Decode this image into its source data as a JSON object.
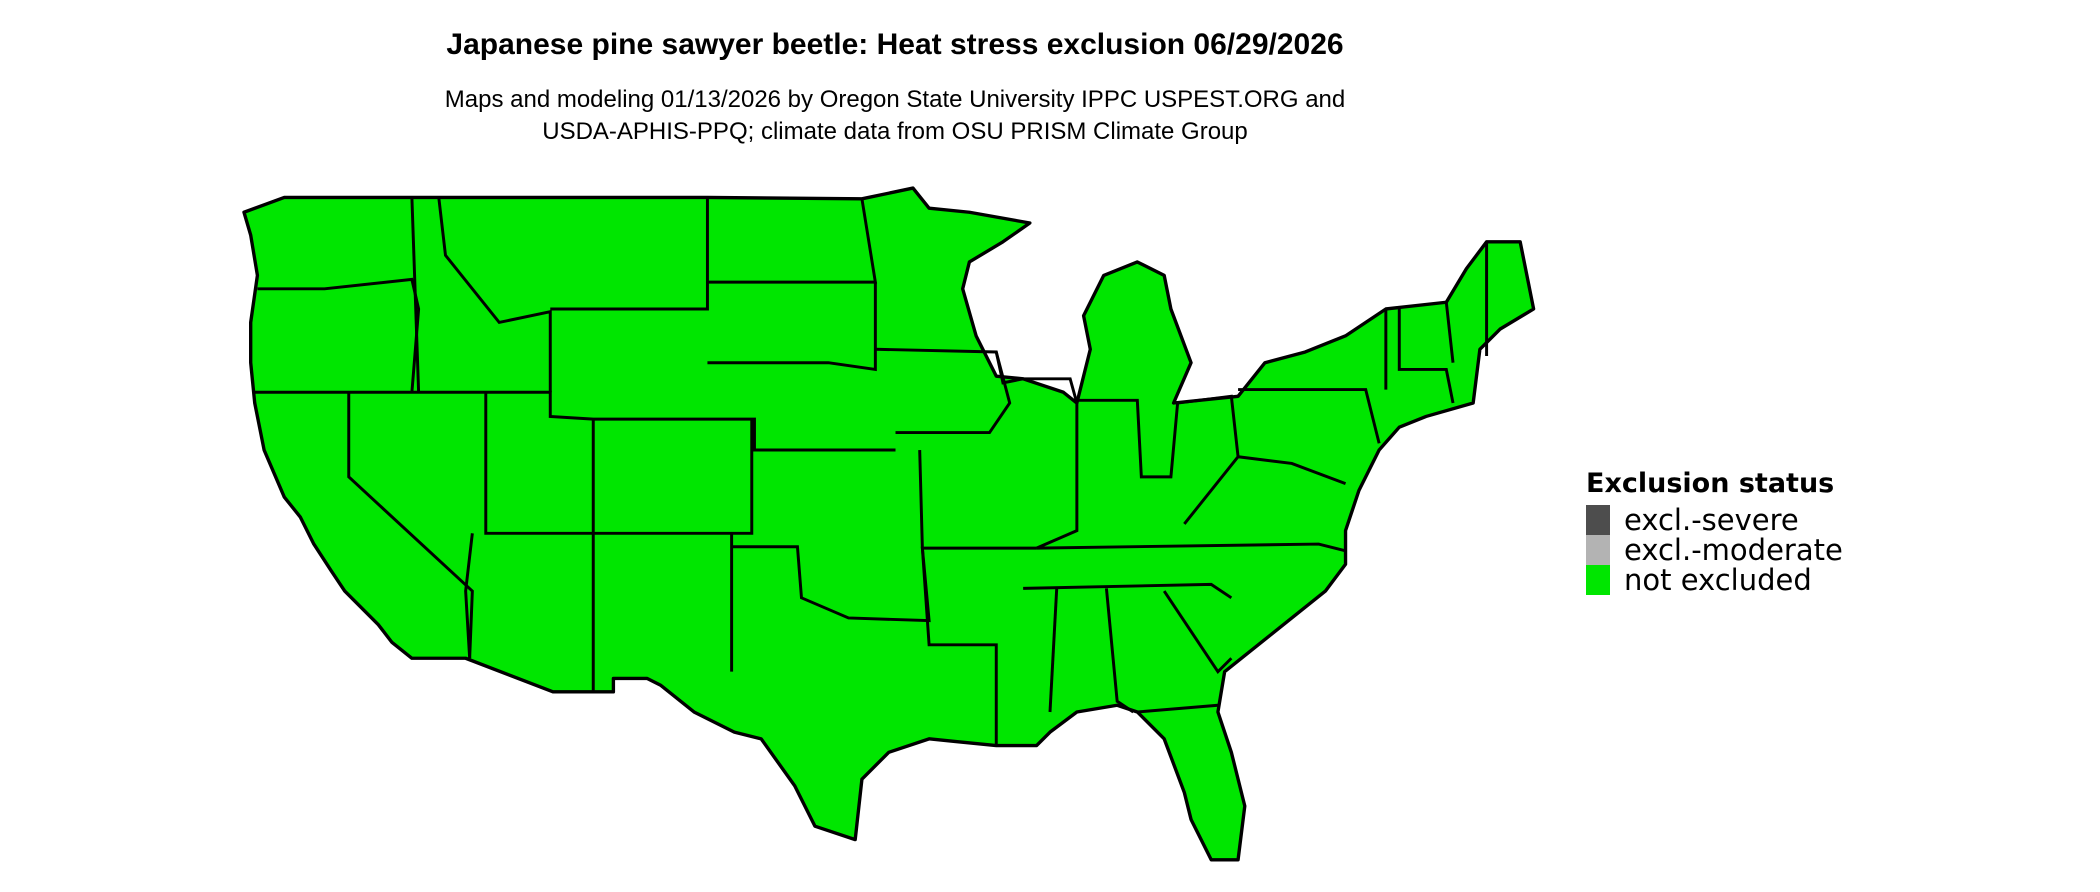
{
  "title": "Japanese pine sawyer beetle: Heat stress exclusion 06/29/2026",
  "subtitle_lines": [
    "Maps and modeling 01/13/2026 by Oregon State University IPPC USPEST.ORG and",
    "USDA-APHIS-PPQ; climate data from OSU PRISM Climate Group"
  ],
  "map": {
    "region": "contiguous United States",
    "fill_status": "not excluded",
    "fill_color": "#00E600",
    "border_color": "#000000"
  },
  "legend": {
    "title": "Exclusion status",
    "items": [
      {
        "label": "excl.-severe",
        "color": "#4D4D4D"
      },
      {
        "label": "excl.-moderate",
        "color": "#B3B3B3"
      },
      {
        "label": "not excluded",
        "color": "#00E600"
      }
    ]
  }
}
